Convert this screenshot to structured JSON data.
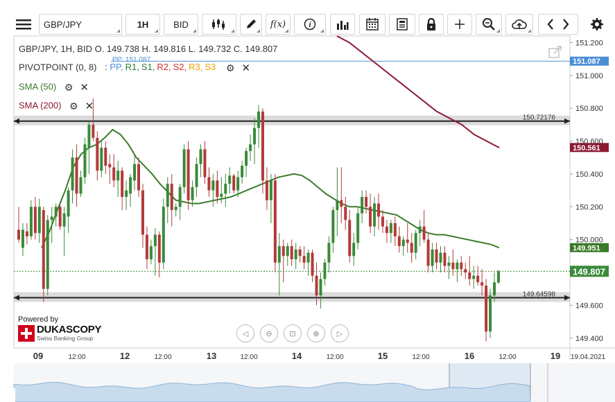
{
  "toolbar": {
    "menu_icon": "hamburger-icon",
    "symbol": "GBP/JPY",
    "timeframe": "1H",
    "price_side": "BID",
    "icons": [
      "candlestick-icon",
      "pencil-icon",
      "function-icon",
      "info-icon",
      "bar-chart-icon",
      "calendar-icon",
      "document-icon",
      "lock-icon",
      "crosshair-icon",
      "zoom-icon",
      "cloud-upload-icon",
      "chevron-left-icon",
      "chevron-right-icon",
      "gear-icon"
    ],
    "function_label": "f(x)"
  },
  "legend": {
    "ohlc": "GBP/JPY, 1H, BID    O. 149.738 H. 149.816 L. 149.732 C. 149.807",
    "pivot_title": "PIVOTPOINT (0, 8)",
    "pivot_sep": ":",
    "pp_tag": "PP: 151.087",
    "pivot_items": [
      {
        "label": "PP,",
        "color": "#4a8fd6"
      },
      {
        "label": "R1,",
        "color": "#2e7d32"
      },
      {
        "label": "S1,",
        "color": "#2e7d32"
      },
      {
        "label": "R2,",
        "color": "#d32f2f"
      },
      {
        "label": "S2,",
        "color": "#d32f2f"
      },
      {
        "label": "R3,",
        "color": "#f0a000"
      },
      {
        "label": "S3",
        "color": "#f0a000"
      }
    ],
    "sma50": "SMA (50)",
    "sma200": "SMA (200)"
  },
  "branding": {
    "powered_by": "Powered by",
    "name": "DUKASCOPY",
    "tagline": "Swiss Banking Group"
  },
  "colors": {
    "bull": "#3a8a3a",
    "bear": "#b33a3a",
    "sma50": "#3a7a2a",
    "sma200": "#8b1a33",
    "pivot_line": "#4a8fd6",
    "current_line": "#3a8a3a"
  },
  "chart_data": {
    "type": "candlestick",
    "symbol": "GBP/JPY",
    "timeframe": "1H",
    "ylim": [
      149.34,
      151.24
    ],
    "y_ticks": [
      "151.200",
      "151.000",
      "150.800",
      "150.600",
      "150.400",
      "150.200",
      "150.000",
      "149.800",
      "149.600",
      "149.400"
    ],
    "x_ticks": [
      "09",
      "12:00",
      "12",
      "12:00",
      "13",
      "12:00",
      "14",
      "12:00",
      "15",
      "12:00",
      "16",
      "12:00",
      "19",
      "19.04.2021"
    ],
    "horizontal_lines": [
      {
        "value": 150.72176,
        "label": "150.72176"
      },
      {
        "value": 149.64598,
        "label": "149.64598"
      }
    ],
    "price_labels": [
      {
        "value": 151.087,
        "label": "151.087",
        "bg": "#4a8fd6"
      },
      {
        "value": 150.561,
        "label": "150.561",
        "bg": "#8b1a33"
      },
      {
        "value": 149.951,
        "label": "149.951",
        "bg": "#3a7a2a"
      },
      {
        "value": 149.807,
        "label": "149.807",
        "bg": "#3a8a3a"
      }
    ],
    "pivot_pp": 151.087,
    "current_price": 149.807,
    "candles": [
      [
        150.06,
        150.2,
        149.98,
        150.0
      ],
      [
        149.95,
        150.1,
        149.9,
        150.06
      ],
      [
        150.05,
        150.1,
        149.97,
        150.02
      ],
      [
        150.02,
        150.24,
        150.0,
        150.2
      ],
      [
        150.2,
        150.26,
        150.0,
        150.04
      ],
      [
        150.04,
        150.25,
        149.98,
        150.2
      ],
      [
        150.18,
        150.2,
        149.62,
        149.7
      ],
      [
        149.7,
        150.15,
        149.66,
        150.12
      ],
      [
        150.12,
        150.2,
        149.98,
        150.14
      ],
      [
        150.14,
        150.22,
        150.08,
        150.2
      ],
      [
        150.2,
        150.22,
        150.06,
        150.08
      ],
      [
        150.08,
        150.2,
        149.9,
        150.16
      ],
      [
        150.14,
        150.32,
        150.04,
        150.3
      ],
      [
        150.3,
        150.55,
        150.22,
        150.5
      ],
      [
        150.5,
        150.58,
        150.2,
        150.28
      ],
      [
        150.28,
        150.42,
        150.26,
        150.38
      ],
      [
        150.38,
        150.62,
        150.34,
        150.58
      ],
      [
        150.56,
        150.72,
        150.4,
        150.7
      ],
      [
        150.7,
        150.86,
        150.6,
        150.62
      ],
      [
        150.62,
        150.66,
        150.36,
        150.42
      ],
      [
        150.42,
        150.6,
        150.38,
        150.56
      ],
      [
        150.56,
        150.6,
        150.4,
        150.45
      ],
      [
        150.46,
        150.52,
        150.34,
        150.44
      ],
      [
        150.44,
        150.52,
        150.32,
        150.36
      ],
      [
        150.36,
        150.48,
        150.26,
        150.42
      ],
      [
        150.42,
        150.44,
        150.18,
        150.26
      ],
      [
        150.26,
        150.36,
        150.18,
        150.3
      ],
      [
        150.28,
        150.4,
        150.2,
        150.38
      ],
      [
        150.36,
        150.52,
        150.3,
        150.46
      ],
      [
        150.46,
        150.5,
        150.26,
        150.3
      ],
      [
        150.3,
        150.34,
        149.95,
        150.03
      ],
      [
        150.03,
        150.08,
        149.82,
        149.88
      ],
      [
        149.88,
        150.0,
        149.85,
        149.96
      ],
      [
        149.96,
        150.07,
        149.78,
        150.03
      ],
      [
        150.03,
        150.05,
        149.77,
        149.86
      ],
      [
        149.86,
        150.25,
        149.82,
        150.2
      ],
      [
        150.2,
        150.38,
        150.1,
        150.34
      ],
      [
        150.34,
        150.4,
        150.08,
        150.18
      ],
      [
        150.18,
        150.22,
        150.14,
        150.2
      ],
      [
        150.2,
        150.34,
        150.12,
        150.32
      ],
      [
        150.32,
        150.58,
        150.28,
        150.55
      ],
      [
        150.55,
        150.6,
        150.18,
        150.24
      ],
      [
        150.24,
        150.36,
        150.2,
        150.32
      ],
      [
        150.32,
        150.5,
        150.26,
        150.46
      ],
      [
        150.46,
        150.58,
        150.38,
        150.55
      ],
      [
        150.55,
        150.6,
        150.34,
        150.38
      ],
      [
        150.38,
        150.44,
        150.26,
        150.3
      ],
      [
        150.3,
        150.4,
        150.2,
        150.36
      ],
      [
        150.36,
        150.42,
        150.22,
        150.26
      ],
      [
        150.26,
        150.38,
        150.22,
        150.28
      ],
      [
        150.28,
        150.4,
        150.2,
        150.34
      ],
      [
        150.34,
        150.44,
        150.28,
        150.39
      ],
      [
        150.39,
        150.4,
        150.28,
        150.3
      ],
      [
        150.3,
        150.42,
        150.26,
        150.38
      ],
      [
        150.38,
        150.48,
        150.34,
        150.45
      ],
      [
        150.45,
        150.56,
        150.38,
        150.54
      ],
      [
        150.54,
        150.64,
        150.48,
        150.58
      ],
      [
        150.58,
        150.74,
        150.46,
        150.68
      ],
      [
        150.68,
        150.82,
        150.56,
        150.78
      ],
      [
        150.78,
        150.8,
        150.28,
        150.36
      ],
      [
        150.36,
        150.44,
        150.18,
        150.24
      ],
      [
        150.24,
        150.4,
        150.1,
        150.36
      ],
      [
        150.36,
        150.4,
        149.8,
        149.86
      ],
      [
        149.86,
        150.04,
        149.66,
        149.96
      ],
      [
        149.96,
        150.0,
        149.74,
        149.9
      ],
      [
        149.9,
        149.98,
        149.84,
        149.96
      ],
      [
        149.96,
        150.0,
        149.84,
        149.88
      ],
      [
        149.88,
        149.98,
        149.82,
        149.94
      ],
      [
        149.94,
        149.96,
        149.86,
        149.9
      ],
      [
        149.9,
        149.96,
        149.82,
        149.86
      ],
      [
        149.86,
        149.94,
        149.78,
        149.92
      ],
      [
        149.92,
        149.94,
        149.74,
        149.78
      ],
      [
        149.78,
        149.86,
        149.6,
        149.66
      ],
      [
        149.66,
        149.8,
        149.58,
        149.76
      ],
      [
        149.76,
        149.88,
        149.72,
        149.86
      ],
      [
        149.86,
        150.02,
        149.8,
        149.98
      ],
      [
        149.98,
        150.2,
        149.92,
        150.18
      ],
      [
        150.18,
        150.44,
        150.02,
        150.24
      ],
      [
        150.24,
        150.44,
        150.1,
        150.2
      ],
      [
        150.2,
        150.26,
        150.06,
        150.12
      ],
      [
        150.12,
        150.18,
        149.86,
        149.9
      ],
      [
        149.9,
        150.04,
        149.84,
        149.98
      ],
      [
        149.98,
        150.2,
        149.94,
        150.16
      ],
      [
        150.16,
        150.3,
        150.1,
        150.26
      ],
      [
        150.26,
        150.3,
        150.16,
        150.2
      ],
      [
        150.2,
        150.28,
        150.04,
        150.08
      ],
      [
        150.08,
        150.26,
        150.02,
        150.22
      ],
      [
        150.22,
        150.28,
        150.06,
        150.14
      ],
      [
        150.14,
        150.18,
        150.04,
        150.08
      ],
      [
        150.08,
        150.12,
        149.98,
        150.04
      ],
      [
        150.04,
        150.12,
        149.98,
        150.1
      ],
      [
        150.1,
        150.14,
        149.96,
        150.02
      ],
      [
        150.02,
        150.08,
        149.92,
        149.96
      ],
      [
        149.96,
        150.02,
        149.9,
        150.0
      ],
      [
        150.0,
        150.1,
        149.92,
        149.98
      ],
      [
        149.98,
        150.04,
        149.86,
        149.92
      ],
      [
        149.92,
        150.06,
        149.88,
        150.04
      ],
      [
        150.04,
        150.12,
        149.96,
        150.08
      ],
      [
        150.08,
        150.18,
        149.98,
        150.0
      ],
      [
        150.0,
        150.04,
        149.8,
        149.84
      ],
      [
        149.84,
        149.98,
        149.8,
        149.94
      ],
      [
        149.94,
        149.98,
        149.82,
        149.86
      ],
      [
        149.86,
        149.96,
        149.8,
        149.92
      ],
      [
        149.92,
        149.96,
        149.8,
        149.84
      ],
      [
        149.84,
        149.9,
        149.76,
        149.86
      ],
      [
        149.86,
        149.94,
        149.78,
        149.82
      ],
      [
        149.82,
        149.88,
        149.74,
        149.86
      ],
      [
        149.86,
        149.9,
        149.78,
        149.82
      ],
      [
        149.82,
        149.86,
        149.76,
        149.8
      ],
      [
        149.8,
        149.9,
        149.72,
        149.76
      ],
      [
        149.76,
        149.84,
        149.7,
        149.78
      ],
      [
        149.78,
        149.84,
        149.72,
        149.74
      ],
      [
        149.74,
        149.82,
        149.66,
        149.72
      ],
      [
        149.72,
        149.76,
        149.38,
        149.44
      ],
      [
        149.44,
        149.7,
        149.4,
        149.66
      ],
      [
        149.66,
        149.8,
        149.62,
        149.74
      ],
      [
        149.738,
        149.816,
        149.732,
        149.807
      ]
    ],
    "sma50": [
      149.95,
      150.05,
      150.18,
      150.3,
      150.44,
      150.52,
      150.56,
      150.58,
      150.62,
      150.67,
      150.64,
      150.58,
      150.5,
      150.45,
      150.4,
      150.34,
      150.29,
      150.24,
      150.23,
      150.22,
      150.22,
      150.23,
      150.24,
      150.25,
      150.26,
      150.28,
      150.3,
      150.32,
      150.34,
      150.36,
      150.38,
      150.39,
      150.4,
      150.39,
      150.36,
      150.32,
      150.28,
      150.25,
      150.22,
      150.2,
      150.2,
      150.19,
      150.18,
      150.17,
      150.16,
      150.15,
      150.12,
      150.09,
      150.06,
      150.04,
      150.03,
      150.03,
      150.02,
      150.01,
      150.0,
      149.99,
      149.98,
      149.97,
      149.95
    ],
    "sma200": [
      151.24,
      151.2,
      151.14,
      151.08,
      151.02,
      150.96,
      150.9,
      150.84,
      150.78,
      150.74,
      150.7,
      150.64,
      150.6,
      150.56
    ]
  }
}
